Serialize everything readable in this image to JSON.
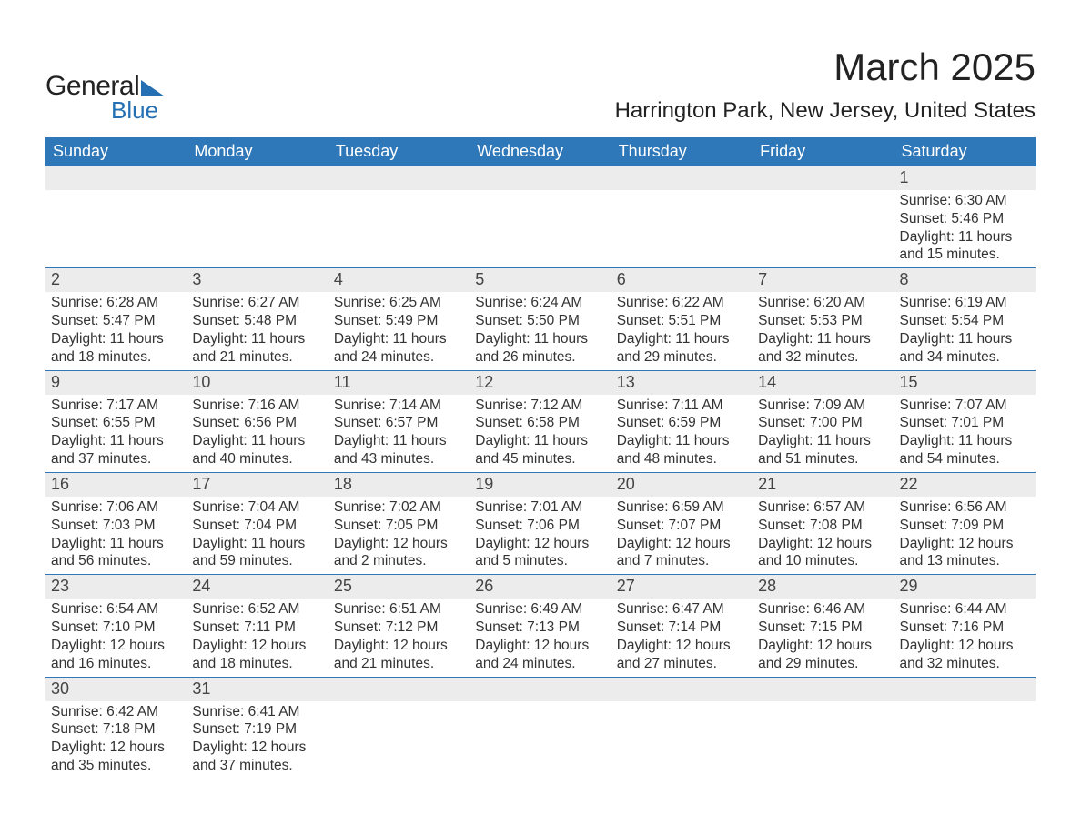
{
  "brand": {
    "part1": "General",
    "part2": "Blue"
  },
  "title": "March 2025",
  "location": "Harrington Park, New Jersey, United States",
  "colors": {
    "header_bg": "#2e78b9",
    "header_text": "#ffffff",
    "daynum_bg": "#ececec",
    "text": "#333333",
    "rule": "#2e78b9",
    "brand_accent": "#2470b3"
  },
  "fonts": {
    "title_size_pt": 42,
    "location_size_pt": 24,
    "dow_size_pt": 18,
    "daynum_size_pt": 18,
    "body_size_pt": 15.5
  },
  "days_of_week": [
    "Sunday",
    "Monday",
    "Tuesday",
    "Wednesday",
    "Thursday",
    "Friday",
    "Saturday"
  ],
  "weeks": [
    [
      {
        "n": "",
        "sunrise": "",
        "sunset": "",
        "daylight": ""
      },
      {
        "n": "",
        "sunrise": "",
        "sunset": "",
        "daylight": ""
      },
      {
        "n": "",
        "sunrise": "",
        "sunset": "",
        "daylight": ""
      },
      {
        "n": "",
        "sunrise": "",
        "sunset": "",
        "daylight": ""
      },
      {
        "n": "",
        "sunrise": "",
        "sunset": "",
        "daylight": ""
      },
      {
        "n": "",
        "sunrise": "",
        "sunset": "",
        "daylight": ""
      },
      {
        "n": "1",
        "sunrise": "Sunrise: 6:30 AM",
        "sunset": "Sunset: 5:46 PM",
        "daylight": "Daylight: 11 hours and 15 minutes."
      }
    ],
    [
      {
        "n": "2",
        "sunrise": "Sunrise: 6:28 AM",
        "sunset": "Sunset: 5:47 PM",
        "daylight": "Daylight: 11 hours and 18 minutes."
      },
      {
        "n": "3",
        "sunrise": "Sunrise: 6:27 AM",
        "sunset": "Sunset: 5:48 PM",
        "daylight": "Daylight: 11 hours and 21 minutes."
      },
      {
        "n": "4",
        "sunrise": "Sunrise: 6:25 AM",
        "sunset": "Sunset: 5:49 PM",
        "daylight": "Daylight: 11 hours and 24 minutes."
      },
      {
        "n": "5",
        "sunrise": "Sunrise: 6:24 AM",
        "sunset": "Sunset: 5:50 PM",
        "daylight": "Daylight: 11 hours and 26 minutes."
      },
      {
        "n": "6",
        "sunrise": "Sunrise: 6:22 AM",
        "sunset": "Sunset: 5:51 PM",
        "daylight": "Daylight: 11 hours and 29 minutes."
      },
      {
        "n": "7",
        "sunrise": "Sunrise: 6:20 AM",
        "sunset": "Sunset: 5:53 PM",
        "daylight": "Daylight: 11 hours and 32 minutes."
      },
      {
        "n": "8",
        "sunrise": "Sunrise: 6:19 AM",
        "sunset": "Sunset: 5:54 PM",
        "daylight": "Daylight: 11 hours and 34 minutes."
      }
    ],
    [
      {
        "n": "9",
        "sunrise": "Sunrise: 7:17 AM",
        "sunset": "Sunset: 6:55 PM",
        "daylight": "Daylight: 11 hours and 37 minutes."
      },
      {
        "n": "10",
        "sunrise": "Sunrise: 7:16 AM",
        "sunset": "Sunset: 6:56 PM",
        "daylight": "Daylight: 11 hours and 40 minutes."
      },
      {
        "n": "11",
        "sunrise": "Sunrise: 7:14 AM",
        "sunset": "Sunset: 6:57 PM",
        "daylight": "Daylight: 11 hours and 43 minutes."
      },
      {
        "n": "12",
        "sunrise": "Sunrise: 7:12 AM",
        "sunset": "Sunset: 6:58 PM",
        "daylight": "Daylight: 11 hours and 45 minutes."
      },
      {
        "n": "13",
        "sunrise": "Sunrise: 7:11 AM",
        "sunset": "Sunset: 6:59 PM",
        "daylight": "Daylight: 11 hours and 48 minutes."
      },
      {
        "n": "14",
        "sunrise": "Sunrise: 7:09 AM",
        "sunset": "Sunset: 7:00 PM",
        "daylight": "Daylight: 11 hours and 51 minutes."
      },
      {
        "n": "15",
        "sunrise": "Sunrise: 7:07 AM",
        "sunset": "Sunset: 7:01 PM",
        "daylight": "Daylight: 11 hours and 54 minutes."
      }
    ],
    [
      {
        "n": "16",
        "sunrise": "Sunrise: 7:06 AM",
        "sunset": "Sunset: 7:03 PM",
        "daylight": "Daylight: 11 hours and 56 minutes."
      },
      {
        "n": "17",
        "sunrise": "Sunrise: 7:04 AM",
        "sunset": "Sunset: 7:04 PM",
        "daylight": "Daylight: 11 hours and 59 minutes."
      },
      {
        "n": "18",
        "sunrise": "Sunrise: 7:02 AM",
        "sunset": "Sunset: 7:05 PM",
        "daylight": "Daylight: 12 hours and 2 minutes."
      },
      {
        "n": "19",
        "sunrise": "Sunrise: 7:01 AM",
        "sunset": "Sunset: 7:06 PM",
        "daylight": "Daylight: 12 hours and 5 minutes."
      },
      {
        "n": "20",
        "sunrise": "Sunrise: 6:59 AM",
        "sunset": "Sunset: 7:07 PM",
        "daylight": "Daylight: 12 hours and 7 minutes."
      },
      {
        "n": "21",
        "sunrise": "Sunrise: 6:57 AM",
        "sunset": "Sunset: 7:08 PM",
        "daylight": "Daylight: 12 hours and 10 minutes."
      },
      {
        "n": "22",
        "sunrise": "Sunrise: 6:56 AM",
        "sunset": "Sunset: 7:09 PM",
        "daylight": "Daylight: 12 hours and 13 minutes."
      }
    ],
    [
      {
        "n": "23",
        "sunrise": "Sunrise: 6:54 AM",
        "sunset": "Sunset: 7:10 PM",
        "daylight": "Daylight: 12 hours and 16 minutes."
      },
      {
        "n": "24",
        "sunrise": "Sunrise: 6:52 AM",
        "sunset": "Sunset: 7:11 PM",
        "daylight": "Daylight: 12 hours and 18 minutes."
      },
      {
        "n": "25",
        "sunrise": "Sunrise: 6:51 AM",
        "sunset": "Sunset: 7:12 PM",
        "daylight": "Daylight: 12 hours and 21 minutes."
      },
      {
        "n": "26",
        "sunrise": "Sunrise: 6:49 AM",
        "sunset": "Sunset: 7:13 PM",
        "daylight": "Daylight: 12 hours and 24 minutes."
      },
      {
        "n": "27",
        "sunrise": "Sunrise: 6:47 AM",
        "sunset": "Sunset: 7:14 PM",
        "daylight": "Daylight: 12 hours and 27 minutes."
      },
      {
        "n": "28",
        "sunrise": "Sunrise: 6:46 AM",
        "sunset": "Sunset: 7:15 PM",
        "daylight": "Daylight: 12 hours and 29 minutes."
      },
      {
        "n": "29",
        "sunrise": "Sunrise: 6:44 AM",
        "sunset": "Sunset: 7:16 PM",
        "daylight": "Daylight: 12 hours and 32 minutes."
      }
    ],
    [
      {
        "n": "30",
        "sunrise": "Sunrise: 6:42 AM",
        "sunset": "Sunset: 7:18 PM",
        "daylight": "Daylight: 12 hours and 35 minutes."
      },
      {
        "n": "31",
        "sunrise": "Sunrise: 6:41 AM",
        "sunset": "Sunset: 7:19 PM",
        "daylight": "Daylight: 12 hours and 37 minutes."
      },
      {
        "n": "",
        "sunrise": "",
        "sunset": "",
        "daylight": ""
      },
      {
        "n": "",
        "sunrise": "",
        "sunset": "",
        "daylight": ""
      },
      {
        "n": "",
        "sunrise": "",
        "sunset": "",
        "daylight": ""
      },
      {
        "n": "",
        "sunrise": "",
        "sunset": "",
        "daylight": ""
      },
      {
        "n": "",
        "sunrise": "",
        "sunset": "",
        "daylight": ""
      }
    ]
  ]
}
